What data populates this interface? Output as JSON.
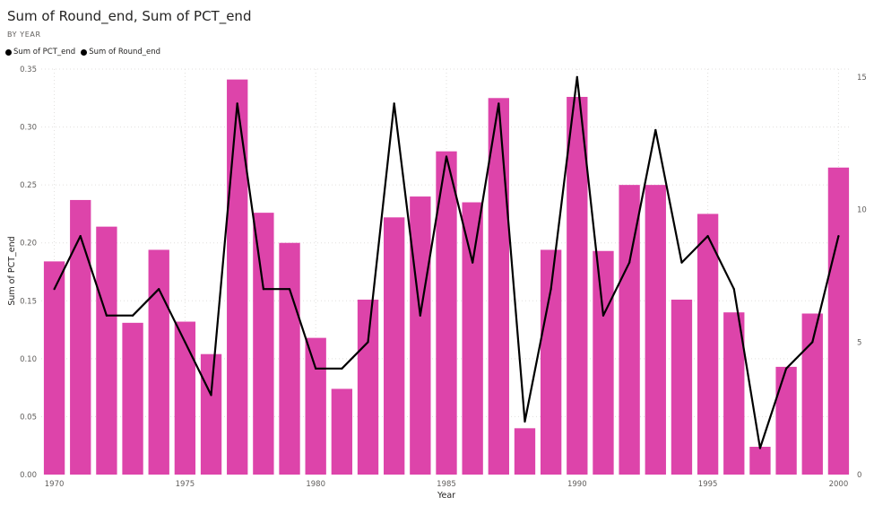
{
  "title": "Sum of Round_end, Sum of PCT_end",
  "subtitle": "BY YEAR",
  "legend": [
    {
      "label": "Sum of PCT_end",
      "color": "#000000"
    },
    {
      "label": "Sum of Round_end",
      "color": "#000000"
    }
  ],
  "colors": {
    "bar": "#dd44aa",
    "line": "#000000"
  },
  "chart_data": {
    "type": "bar+line",
    "title": "Sum of Round_end, Sum of PCT_end",
    "subtitle": "BY YEAR",
    "xlabel": "Year",
    "ylabel": "Sum of PCT_end",
    "y2label": "",
    "x": [
      1970,
      1971,
      1972,
      1973,
      1974,
      1975,
      1976,
      1977,
      1978,
      1979,
      1980,
      1981,
      1982,
      1983,
      1984,
      1985,
      1986,
      1987,
      1988,
      1989,
      1990,
      1991,
      1992,
      1993,
      1994,
      1995,
      1996,
      1997,
      1998,
      1999,
      2000
    ],
    "x_ticks": [
      1970,
      1975,
      1980,
      1985,
      1990,
      1995,
      2000
    ],
    "ylim": [
      0,
      0.35
    ],
    "y_ticks": [
      "0.00",
      "0.05",
      "0.10",
      "0.15",
      "0.20",
      "0.25",
      "0.30",
      "0.35"
    ],
    "y2lim": [
      0,
      15.3
    ],
    "y2_ticks": [
      0,
      5,
      10,
      15
    ],
    "series": [
      {
        "name": "Sum of PCT_end",
        "type": "bar",
        "axis": "left",
        "values": [
          0.184,
          0.237,
          0.214,
          0.131,
          0.194,
          0.132,
          0.104,
          0.341,
          0.226,
          0.2,
          0.118,
          0.074,
          0.151,
          0.222,
          0.24,
          0.279,
          0.235,
          0.325,
          0.04,
          0.194,
          0.326,
          0.193,
          0.25,
          0.25,
          0.151,
          0.225,
          0.14,
          0.024,
          0.093,
          0.139,
          0.265
        ]
      },
      {
        "name": "Sum of Round_end",
        "type": "line",
        "axis": "right",
        "values": [
          7,
          9,
          6,
          6,
          7,
          5,
          3,
          14,
          7,
          7,
          4,
          4,
          5,
          14,
          6,
          12,
          8,
          14,
          2,
          7,
          15,
          6,
          8,
          13,
          8,
          9,
          7,
          1,
          4,
          5,
          9
        ]
      }
    ],
    "grid": true,
    "legend_position": "top-left"
  }
}
